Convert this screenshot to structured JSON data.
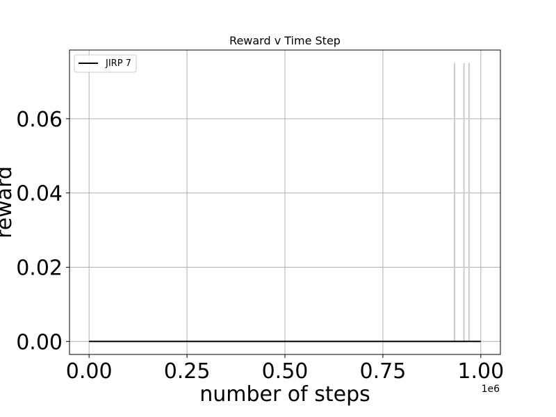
{
  "chart_data": {
    "type": "line",
    "title": "Reward v Time Step",
    "xlabel": "number of steps",
    "ylabel": "reward",
    "x_offset_label": "1e6",
    "xlim": [
      -0.05,
      1.05
    ],
    "ylim": [
      -0.0035,
      0.0785
    ],
    "x_ticks": [
      0.0,
      0.25,
      0.5,
      0.75,
      1.0
    ],
    "x_tick_labels": [
      "0.00",
      "0.25",
      "0.50",
      "0.75",
      "1.00"
    ],
    "y_ticks": [
      0.0,
      0.02,
      0.04,
      0.06
    ],
    "y_tick_labels": [
      "0.00",
      "0.02",
      "0.04",
      "0.06"
    ],
    "grid": true,
    "legend_position": "top-left",
    "series": [
      {
        "name": "JIRP 7",
        "color": "#000000",
        "x": [
          0.0,
          1.0
        ],
        "y": [
          0.0,
          0.0
        ]
      }
    ],
    "spikes": {
      "color": "#cccccc",
      "x": [
        0.933,
        0.957,
        0.97
      ],
      "y": [
        0.075,
        0.075,
        0.075
      ]
    }
  }
}
